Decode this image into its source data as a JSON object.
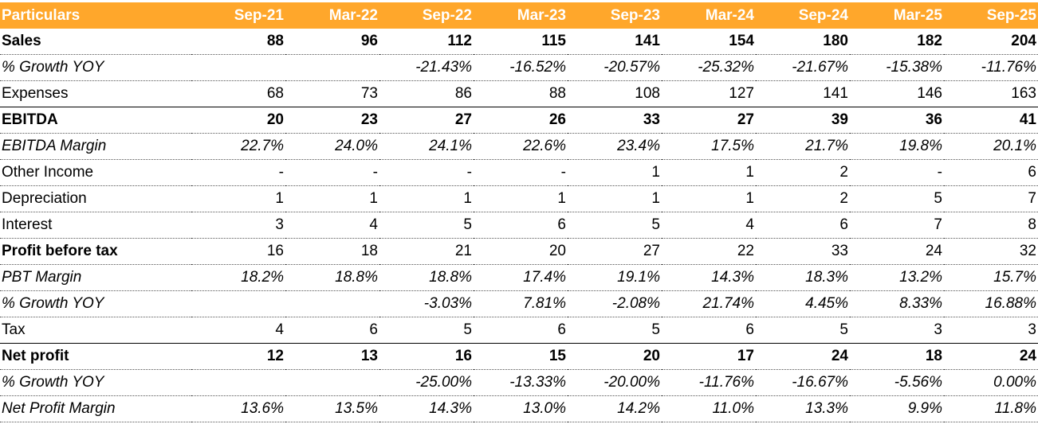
{
  "table": {
    "header": [
      "Particulars",
      "Sep-21",
      "Mar-22",
      "Sep-22",
      "Mar-23",
      "Sep-23",
      "Mar-24",
      "Sep-24",
      "Mar-25",
      "Sep-25"
    ],
    "rows": [
      [
        "Sales",
        "88",
        "96",
        "112",
        "115",
        "141",
        "154",
        "180",
        "182",
        "204"
      ],
      [
        "% Growth YOY",
        null,
        null,
        "-21.43%",
        "-16.52%",
        "-20.57%",
        "-25.32%",
        "-21.67%",
        "-15.38%",
        "-11.76%"
      ],
      [
        "Expenses",
        "68",
        "73",
        "86",
        "88",
        "108",
        "127",
        "141",
        "146",
        "163"
      ],
      [
        "EBITDA",
        "20",
        "23",
        "27",
        "26",
        "33",
        "27",
        "39",
        "36",
        "41"
      ],
      [
        "EBITDA Margin",
        "22.7%",
        "24.0%",
        "24.1%",
        "22.6%",
        "23.4%",
        "17.5%",
        "21.7%",
        "19.8%",
        "20.1%"
      ],
      [
        "Other Income",
        "-",
        "-",
        "-",
        "-",
        "1",
        "1",
        "2",
        "-",
        "6"
      ],
      [
        "Depreciation",
        "1",
        "1",
        "1",
        "1",
        "1",
        "1",
        "2",
        "5",
        "7"
      ],
      [
        "Interest",
        "3",
        "4",
        "5",
        "6",
        "5",
        "4",
        "6",
        "7",
        "8"
      ],
      [
        "Profit before tax",
        "16",
        "18",
        "21",
        "20",
        "27",
        "22",
        "33",
        "24",
        "32"
      ],
      [
        "PBT Margin",
        "18.2%",
        "18.8%",
        "18.8%",
        "17.4%",
        "19.1%",
        "14.3%",
        "18.3%",
        "13.2%",
        "15.7%"
      ],
      [
        "% Growth YOY",
        null,
        null,
        "-3.03%",
        "7.81%",
        "-2.08%",
        "21.74%",
        "4.45%",
        "8.33%",
        "16.88%"
      ],
      [
        "Tax",
        "4",
        "6",
        "5",
        "6",
        "5",
        "6",
        "5",
        "3",
        "3"
      ],
      [
        "Net profit",
        "12",
        "13",
        "16",
        "15",
        "20",
        "17",
        "24",
        "18",
        "24"
      ],
      [
        "% Growth YOY",
        null,
        null,
        "-25.00%",
        "-13.33%",
        "-20.00%",
        "-11.76%",
        "-16.67%",
        "-5.56%",
        "0.00%"
      ],
      [
        "Net Profit Margin",
        "13.6%",
        "13.5%",
        "14.3%",
        "13.0%",
        "14.2%",
        "11.0%",
        "13.3%",
        "9.9%",
        "11.8%"
      ]
    ]
  }
}
